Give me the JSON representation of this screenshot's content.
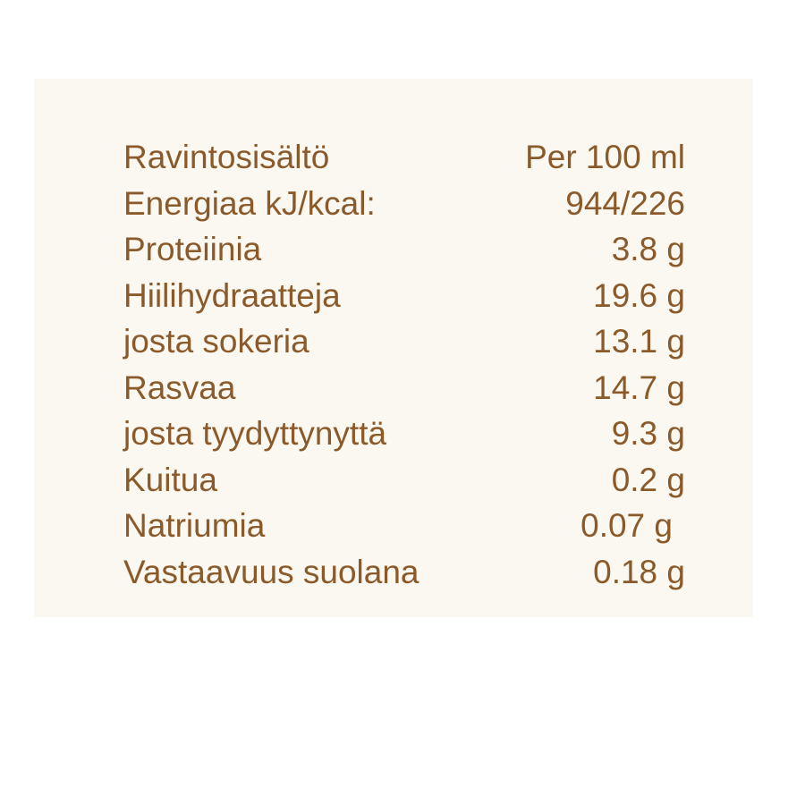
{
  "text_color": "#8b5a2b",
  "header": {
    "label": "Ravintosisältö",
    "value": "Per 100 ml"
  },
  "rows": [
    {
      "label": "Energiaa kJ/kcal:",
      "value": "944/226"
    },
    {
      "label": "Proteiinia",
      "value": "3.8 g"
    },
    {
      "label": "Hiilihydraatteja",
      "value": "19.6 g"
    },
    {
      "label": "josta sokeria",
      "value": "13.1 g"
    },
    {
      "label": "Rasvaa",
      "value": "14.7 g"
    },
    {
      "label": "josta tyydyttynyttä",
      "value": "9.3 g"
    },
    {
      "label": "Kuitua",
      "value": "0.2 g"
    },
    {
      "label": "Natriumia",
      "value": "0.07 g"
    },
    {
      "label": "Vastaavuus suolana",
      "value": "0.18 g"
    }
  ]
}
